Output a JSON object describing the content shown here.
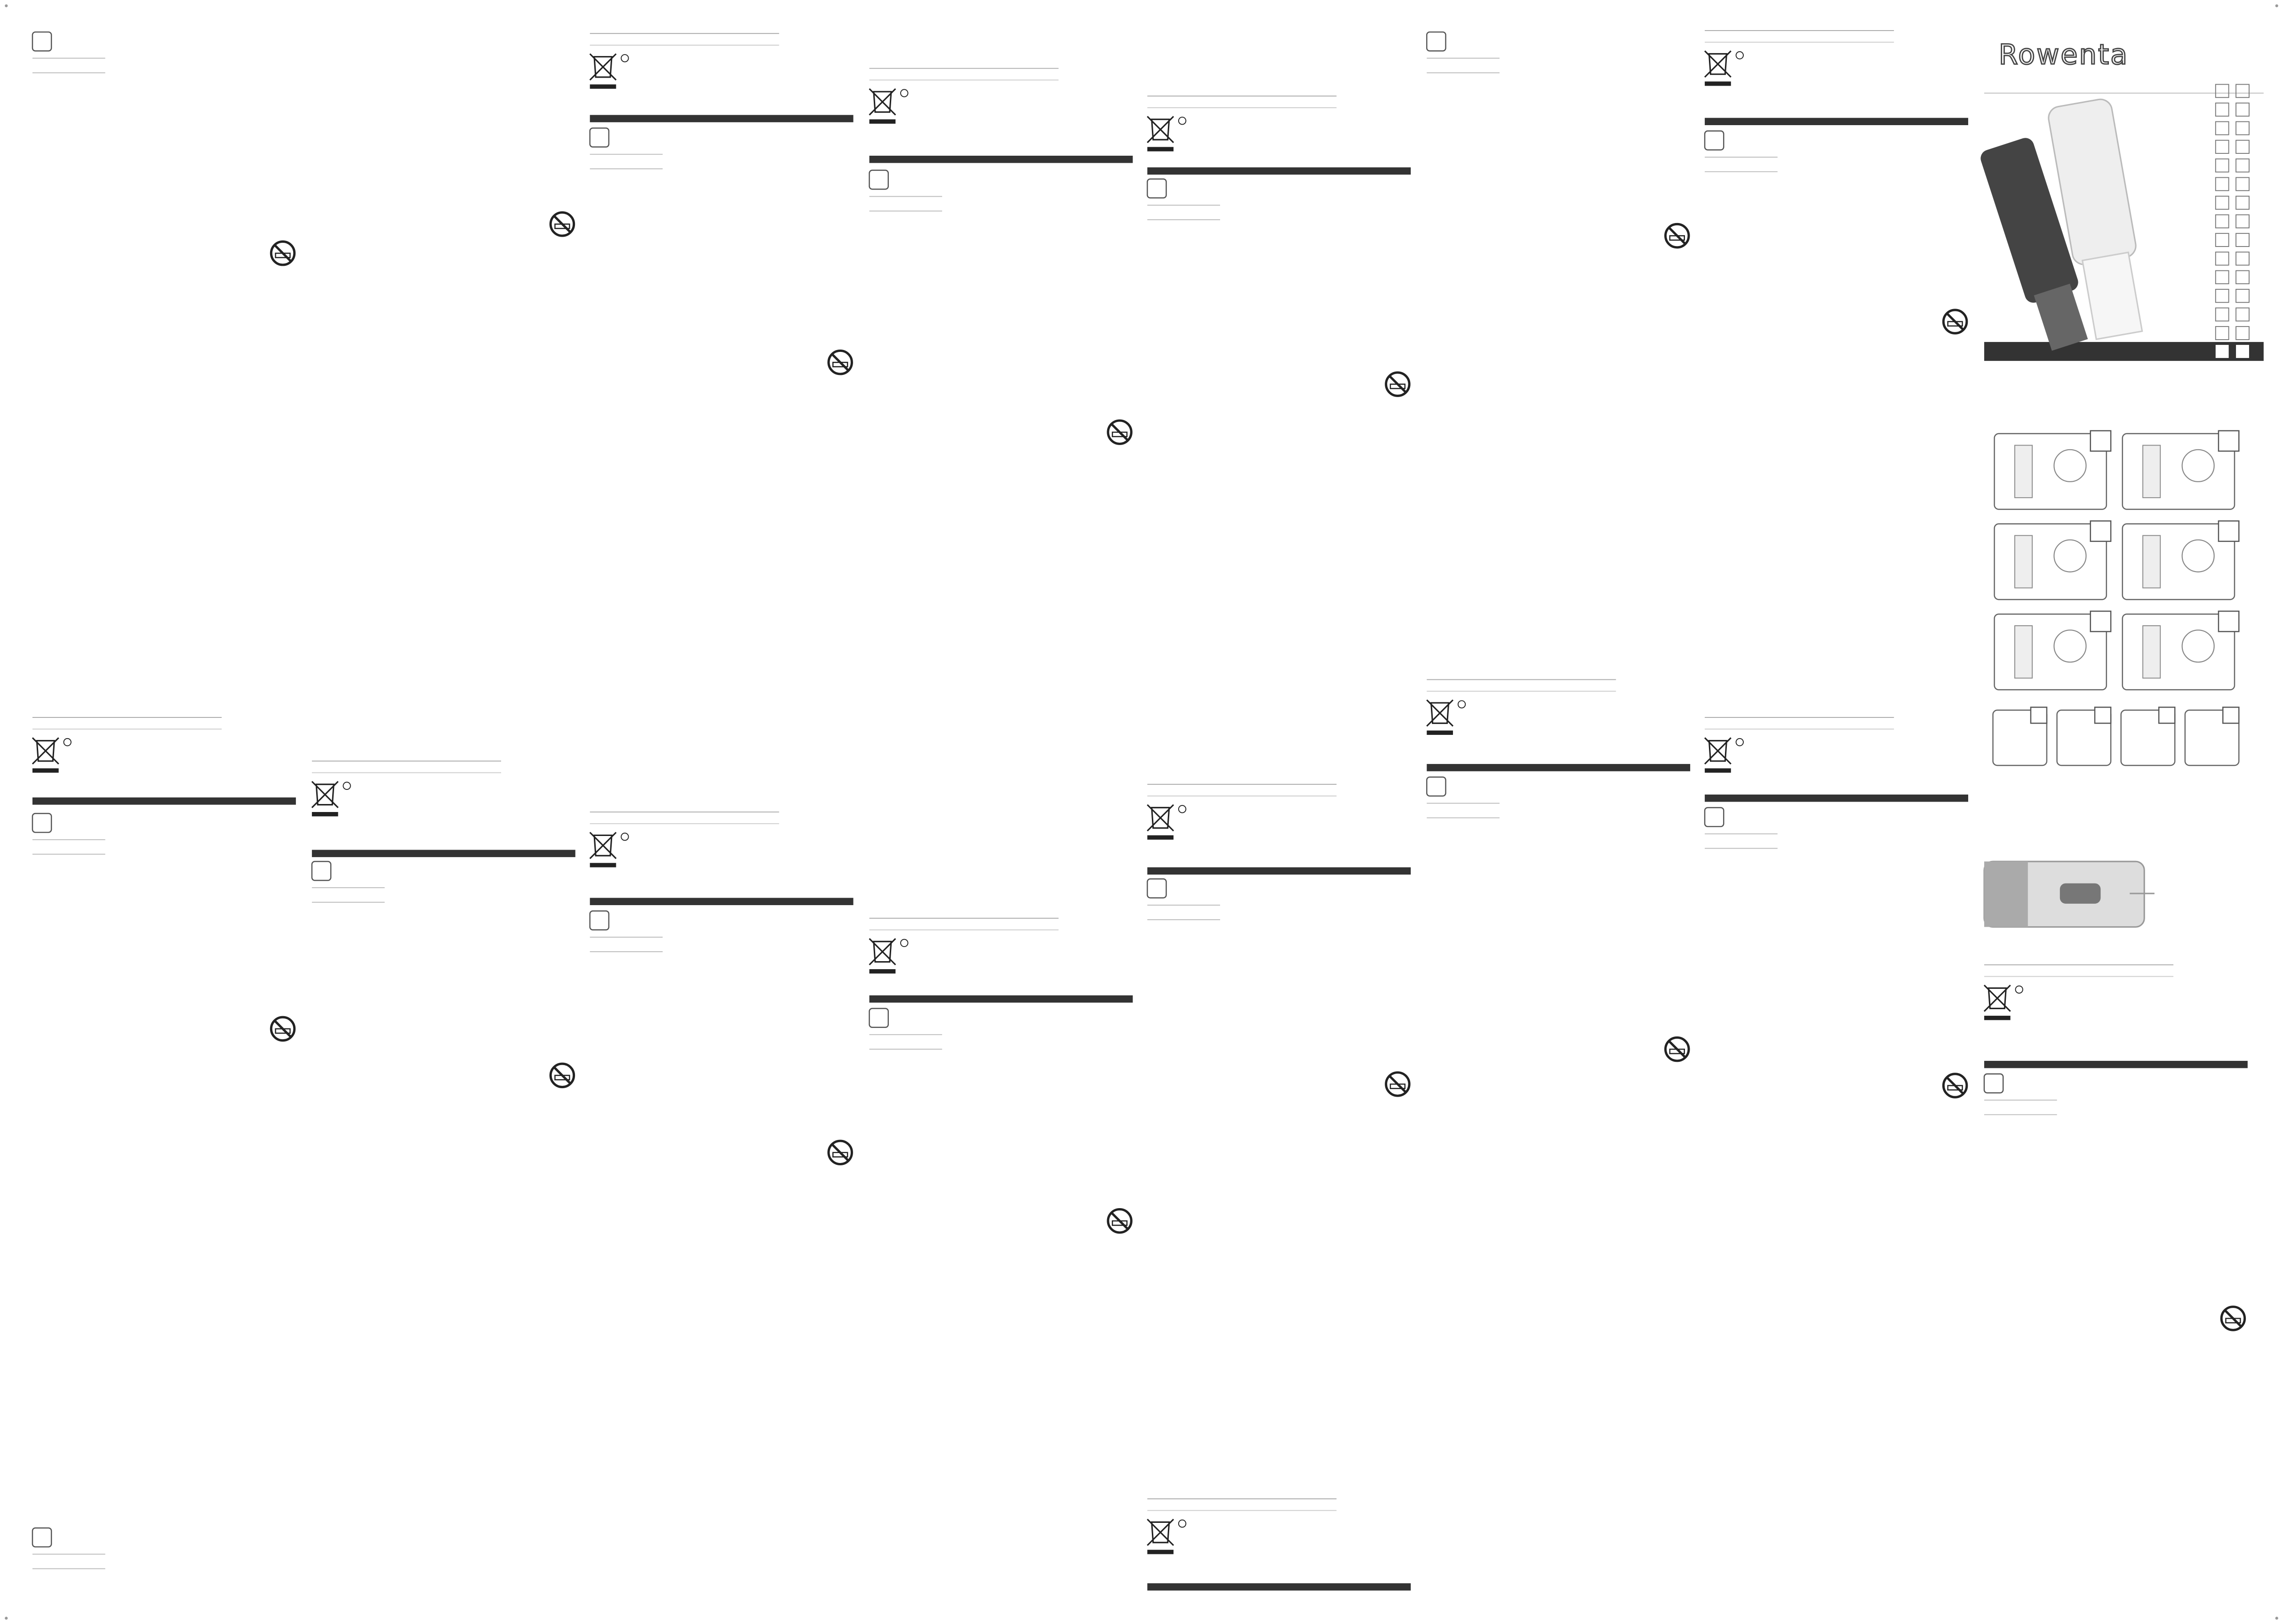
{
  "brand": "Rowenta"
}
